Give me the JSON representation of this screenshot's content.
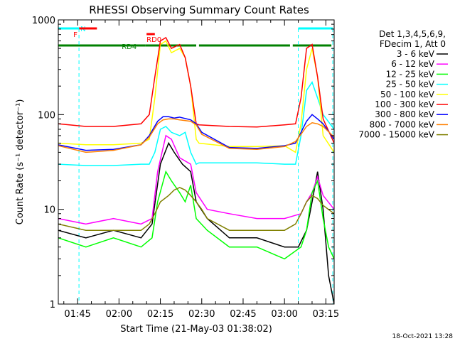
{
  "chart_data": {
    "type": "line",
    "title": "RHESSI Observing Summary Count Rates",
    "xlabel": "Start Time (21-May-03 01:38:02)",
    "ylabel": "Count Rate (s⁻¹ detector⁻¹)",
    "yscale": "log",
    "ylim": [
      1,
      1000
    ],
    "xlim_minutes": [
      98,
      198
    ],
    "x_ticks": [
      "01:45",
      "02:00",
      "02:15",
      "02:30",
      "02:45",
      "03:00",
      "03:15"
    ],
    "y_ticks": [
      "1",
      "10",
      "100",
      "1000"
    ],
    "legend": {
      "header": [
        "Det 1,3,4,5,6,9,",
        "FDecim 1, Att 0"
      ],
      "placement": "right"
    },
    "timestamp": "18-Oct-2021 13:28",
    "series": [
      {
        "name": "3 - 6 keV",
        "color": "#000000",
        "points": [
          [
            98,
            6
          ],
          [
            108,
            5
          ],
          [
            118,
            6
          ],
          [
            128,
            5
          ],
          [
            132,
            7
          ],
          [
            135,
            30
          ],
          [
            138,
            50
          ],
          [
            140,
            40
          ],
          [
            143,
            30
          ],
          [
            146,
            25
          ],
          [
            148,
            12
          ],
          [
            152,
            8
          ],
          [
            160,
            5
          ],
          [
            170,
            5
          ],
          [
            180,
            4
          ],
          [
            185,
            4
          ],
          [
            188,
            6
          ],
          [
            190,
            12
          ],
          [
            192,
            25
          ],
          [
            194,
            10
          ],
          [
            196,
            2
          ],
          [
            198,
            1
          ]
        ]
      },
      {
        "name": "6 - 12 keV",
        "color": "#ff00ff",
        "points": [
          [
            98,
            8
          ],
          [
            108,
            7
          ],
          [
            118,
            8
          ],
          [
            128,
            7
          ],
          [
            132,
            8
          ],
          [
            134,
            25
          ],
          [
            137,
            60
          ],
          [
            139,
            55
          ],
          [
            142,
            35
          ],
          [
            146,
            30
          ],
          [
            148,
            15
          ],
          [
            152,
            10
          ],
          [
            160,
            9
          ],
          [
            170,
            8
          ],
          [
            180,
            8
          ],
          [
            186,
            9
          ],
          [
            188,
            12
          ],
          [
            190,
            15
          ],
          [
            192,
            22
          ],
          [
            194,
            14
          ],
          [
            198,
            10
          ]
        ]
      },
      {
        "name": "12 - 25 keV",
        "color": "#00ff00",
        "points": [
          [
            98,
            5
          ],
          [
            108,
            4
          ],
          [
            118,
            5
          ],
          [
            128,
            4
          ],
          [
            132,
            5
          ],
          [
            134,
            12
          ],
          [
            137,
            25
          ],
          [
            139,
            20
          ],
          [
            142,
            15
          ],
          [
            144,
            12
          ],
          [
            146,
            18
          ],
          [
            148,
            8
          ],
          [
            152,
            6
          ],
          [
            160,
            4
          ],
          [
            170,
            4
          ],
          [
            180,
            3
          ],
          [
            186,
            4
          ],
          [
            188,
            6
          ],
          [
            190,
            15
          ],
          [
            192,
            20
          ],
          [
            194,
            8
          ],
          [
            196,
            4
          ],
          [
            198,
            3
          ]
        ]
      },
      {
        "name": "25 - 50 keV",
        "color": "#00ffff",
        "points": [
          [
            98,
            30
          ],
          [
            108,
            29
          ],
          [
            118,
            29
          ],
          [
            128,
            30
          ],
          [
            131,
            30
          ],
          [
            133,
            40
          ],
          [
            135,
            70
          ],
          [
            137,
            75
          ],
          [
            139,
            65
          ],
          [
            142,
            60
          ],
          [
            144,
            65
          ],
          [
            146,
            40
          ],
          [
            148,
            30
          ],
          [
            149,
            31
          ],
          [
            160,
            31
          ],
          [
            170,
            31
          ],
          [
            180,
            30
          ],
          [
            184,
            30
          ],
          [
            186,
            60
          ],
          [
            188,
            180
          ],
          [
            190,
            220
          ],
          [
            192,
            150
          ],
          [
            194,
            100
          ],
          [
            198,
            70
          ]
        ]
      },
      {
        "name": "50 - 100 keV",
        "color": "#ffff00",
        "points": [
          [
            98,
            50
          ],
          [
            108,
            48
          ],
          [
            118,
            48
          ],
          [
            128,
            50
          ],
          [
            131,
            55
          ],
          [
            133,
            150
          ],
          [
            135,
            550
          ],
          [
            137,
            600
          ],
          [
            139,
            450
          ],
          [
            142,
            500
          ],
          [
            144,
            400
          ],
          [
            146,
            200
          ],
          [
            148,
            55
          ],
          [
            149,
            50
          ],
          [
            160,
            46
          ],
          [
            170,
            46
          ],
          [
            180,
            47
          ],
          [
            184,
            40
          ],
          [
            186,
            80
          ],
          [
            188,
            300
          ],
          [
            190,
            500
          ],
          [
            192,
            250
          ],
          [
            194,
            60
          ],
          [
            198,
            40
          ]
        ]
      },
      {
        "name": "100 - 300 keV",
        "color": "#ff0000",
        "points": [
          [
            98,
            80
          ],
          [
            108,
            75
          ],
          [
            118,
            75
          ],
          [
            128,
            80
          ],
          [
            131,
            100
          ],
          [
            133,
            250
          ],
          [
            135,
            600
          ],
          [
            137,
            650
          ],
          [
            139,
            500
          ],
          [
            142,
            550
          ],
          [
            144,
            400
          ],
          [
            146,
            200
          ],
          [
            148,
            80
          ],
          [
            149,
            78
          ],
          [
            160,
            75
          ],
          [
            170,
            74
          ],
          [
            180,
            78
          ],
          [
            184,
            80
          ],
          [
            186,
            150
          ],
          [
            188,
            500
          ],
          [
            190,
            550
          ],
          [
            192,
            250
          ],
          [
            194,
            90
          ],
          [
            198,
            50
          ]
        ]
      },
      {
        "name": "300 - 800 keV",
        "color": "#0000ff",
        "points": [
          [
            98,
            48
          ],
          [
            108,
            42
          ],
          [
            118,
            43
          ],
          [
            128,
            48
          ],
          [
            131,
            60
          ],
          [
            134,
            85
          ],
          [
            136,
            95
          ],
          [
            138,
            95
          ],
          [
            140,
            92
          ],
          [
            142,
            94
          ],
          [
            146,
            88
          ],
          [
            148,
            80
          ],
          [
            150,
            65
          ],
          [
            160,
            45
          ],
          [
            170,
            44
          ],
          [
            180,
            47
          ],
          [
            184,
            50
          ],
          [
            186,
            65
          ],
          [
            188,
            85
          ],
          [
            190,
            100
          ],
          [
            192,
            90
          ],
          [
            194,
            80
          ],
          [
            198,
            55
          ]
        ]
      },
      {
        "name": "800 - 7000 keV",
        "color": "#ff8000",
        "points": [
          [
            98,
            47
          ],
          [
            108,
            40
          ],
          [
            118,
            42
          ],
          [
            128,
            48
          ],
          [
            131,
            58
          ],
          [
            134,
            80
          ],
          [
            136,
            88
          ],
          [
            138,
            90
          ],
          [
            140,
            90
          ],
          [
            142,
            88
          ],
          [
            146,
            85
          ],
          [
            148,
            78
          ],
          [
            150,
            62
          ],
          [
            160,
            44
          ],
          [
            170,
            43
          ],
          [
            180,
            46
          ],
          [
            184,
            52
          ],
          [
            186,
            62
          ],
          [
            188,
            75
          ],
          [
            190,
            82
          ],
          [
            192,
            80
          ],
          [
            194,
            75
          ],
          [
            198,
            58
          ]
        ]
      },
      {
        "name": "7000 - 15000 keV",
        "color": "#808000",
        "points": [
          [
            98,
            7
          ],
          [
            108,
            6
          ],
          [
            118,
            6
          ],
          [
            128,
            6
          ],
          [
            131,
            7
          ],
          [
            133,
            9
          ],
          [
            135,
            12
          ],
          [
            138,
            14
          ],
          [
            140,
            16
          ],
          [
            142,
            17
          ],
          [
            144,
            16
          ],
          [
            146,
            14
          ],
          [
            148,
            12
          ],
          [
            150,
            10
          ],
          [
            152,
            8
          ],
          [
            160,
            6
          ],
          [
            170,
            6
          ],
          [
            180,
            6
          ],
          [
            184,
            7
          ],
          [
            186,
            9
          ],
          [
            188,
            12
          ],
          [
            190,
            14
          ],
          [
            192,
            13
          ],
          [
            194,
            11
          ],
          [
            198,
            9
          ]
        ]
      }
    ],
    "flags": [
      {
        "label": "N",
        "color": "#00ffff",
        "row": "top",
        "segments": [
          [
            98,
            105.5
          ],
          [
            185,
            197.5
          ]
        ]
      },
      {
        "label": "F",
        "color": "#ff0000",
        "row": "top",
        "segments": [
          [
            105.5,
            112
          ]
        ]
      },
      {
        "label": "RD0",
        "color": "#ff0000",
        "row": "mid",
        "segments": [
          [
            130,
            133
          ]
        ]
      },
      {
        "label": "RD4",
        "color": "#008000",
        "row": "low",
        "segments": [
          [
            98,
            129.5
          ],
          [
            129.5,
            148
          ],
          [
            149,
            182
          ],
          [
            183,
            197
          ]
        ]
      }
    ],
    "vertical_markers": {
      "color": "#00ffff",
      "x": [
        105.5,
        185,
        197.5
      ]
    }
  }
}
